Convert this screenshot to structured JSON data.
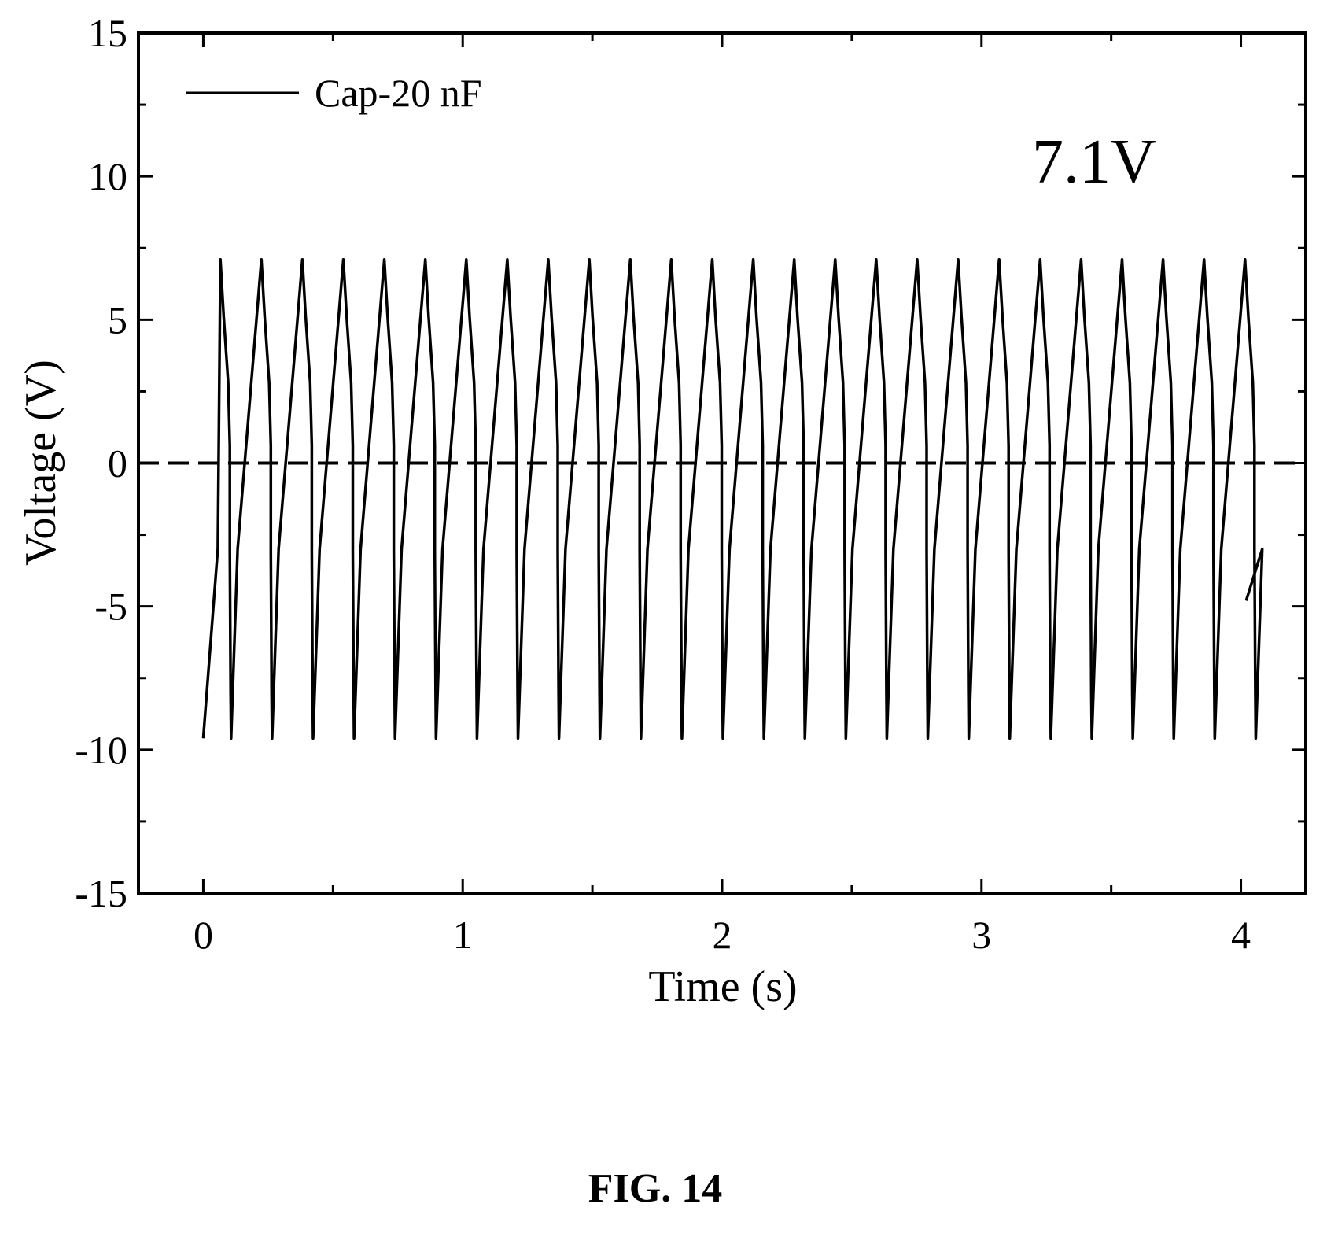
{
  "chart_data": {
    "type": "line",
    "xlabel": "Time (s)",
    "ylabel": "Voltage (V)",
    "xlim": [
      -0.25,
      4.25
    ],
    "ylim": [
      -15,
      15
    ],
    "x_ticks": [
      0,
      1,
      2,
      3,
      4
    ],
    "y_ticks": [
      -15,
      -10,
      -5,
      0,
      5,
      10,
      15
    ],
    "grid": false,
    "legend_position": "top-left",
    "annotation": "7.1V",
    "series": [
      {
        "name": "Cap-20 nF",
        "style": "solid",
        "period_s": 0.158,
        "first_peak_time_s": 0.066,
        "peak_V": 7.1,
        "trough_V": -9.6,
        "num_cycles": 26,
        "waveform": "sawtooth"
      },
      {
        "name": "",
        "style": "dashed",
        "x": [
          -0.25,
          4.25
        ],
        "y": [
          0,
          0
        ]
      }
    ]
  },
  "caption": "FIG. 14",
  "colors": {
    "line": "#000000",
    "background": "#ffffff"
  }
}
